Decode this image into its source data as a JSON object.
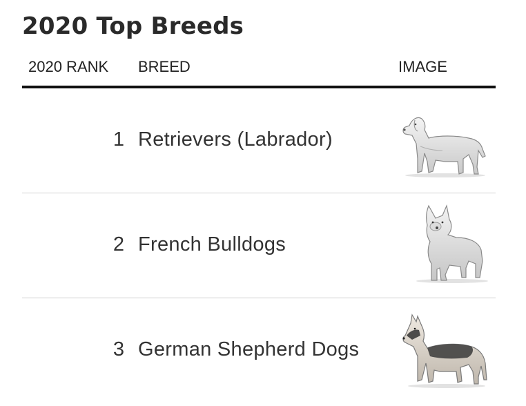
{
  "title": "2020 Top Breeds",
  "columns": {
    "rank": "2020 RANK",
    "breed": "BREED",
    "image": "IMAGE"
  },
  "rows": [
    {
      "rank": "1",
      "breed": "Retrievers (Labrador)",
      "image_icon": "labrador-retriever-illustration"
    },
    {
      "rank": "2",
      "breed": "French Bulldogs",
      "image_icon": "french-bulldog-illustration"
    },
    {
      "rank": "3",
      "breed": "German Shepherd Dogs",
      "image_icon": "german-shepherd-illustration"
    }
  ]
}
